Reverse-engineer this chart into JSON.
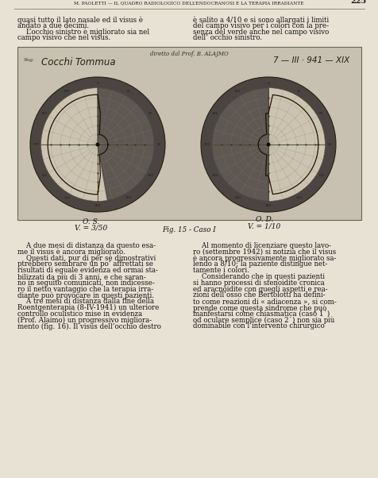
{
  "bg_color": "#d8d0c0",
  "page_color": "#e8e2d5",
  "header_text": "M. PAOLETTI — IL QUADRO RADIOLOGICO DELL’ENDOCRANOSI E LA TERAPIA IRRADIANTE",
  "header_page": "225",
  "text_col1_top": "quasi tutto il lato nasale ed il visus è\nandato a due decimi.\n    L’occhio sinistro è migliorato sia nel\ncampo visivo che nel visus.",
  "text_col2_top": "è salito a 4/10 e si sono allargati i limiti\ndel campo visivo per i colori con la pre-\nsenza del verde anche nel campo visivo\ndell’ occhio sinistro.",
  "handwriting_left": "Cocchi Tommua",
  "handwriting_date": "7 — III · 941 — XIX",
  "label_os": "O. S.",
  "label_os2": "V. = 3/50",
  "label_od": "O. D.",
  "label_od2": "V. = 1/10",
  "fig_caption": "Fig. 15 - Caso I",
  "text_col1_bottom": "    A due mesi di distanza da questo esa-\nme il visus è ancora migliorato.\n    Questi dati, pur di per sè dimostrativi\nptrebbero sembrare un po’ affrettati se\nrisultati di eguale evidenza ed ormai sta-\nbilizzati da più di 3 anni, e che saran-\nno in seguito comunicati, non indicesse-\nro il netto vantaggio che la terapia irra-\ndiante può provocare in questi pazienti.\n    A tre mesi di distanza dalla fine della\nRoentgenterapia (8-IV-1941) un ulteriore\ncontrollo oculistico mise in evidenza\n(Prof. Alaimo) un progressivo migliora-\nmento (fig. 16). Il visus dell’occhio destro",
  "text_col2_bottom": "    Al momento di licenziare questo lavo-\nro (settembre 1942) si notizia che il visus\nè ancora progressivamente migliorato sa-\nlendo a 8/10; la paziente distingue net-\ntamente i colori.\n    Considerando che in questi pazienti\nsi hanno processi di sfenoidite cronica\ned aracnoidite con quegli aspetti e rea-\nzioni dell’osso che Bertolotti ha defini-\nto come reazioni di « adiacenza », si com-\nprende come questa sindrome che può\nmanfestarsi come chiasmatica (caso 1˙)\nod oculare semplice (caso 2˙) non sia più\ndominabile con l’intervento chirurgico",
  "chart_dark_color": "#4a4540",
  "chart_mid_color": "#8a8070",
  "chart_light_color": "#ccc4b0",
  "chart_grid_color": "#888070",
  "chart_bg_color": "#b8b0a0"
}
